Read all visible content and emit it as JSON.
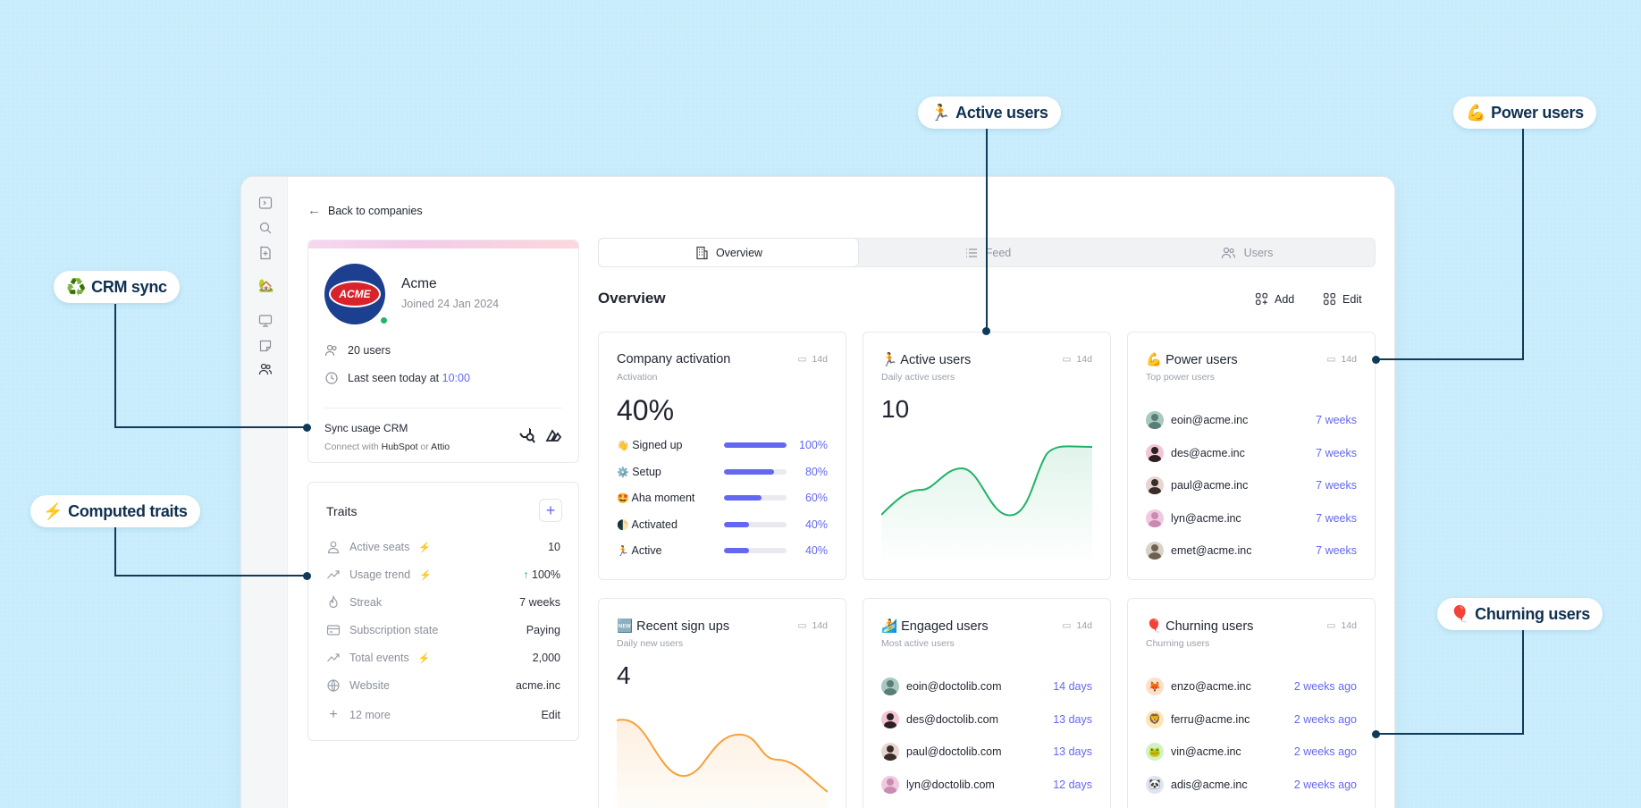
{
  "callouts": {
    "crm": {
      "icon": "♻️",
      "label": "CRM sync"
    },
    "traits": {
      "icon": "⚡",
      "label": "Computed traits"
    },
    "active": {
      "icon": "🏃",
      "label": "Active users"
    },
    "power": {
      "icon": "💪",
      "label": "Power users"
    },
    "churn": {
      "icon": "🎈",
      "label": "Churning users"
    }
  },
  "nav": {
    "back": "Back to companies"
  },
  "company": {
    "name": "Acme",
    "logo_text": "ACME",
    "joined": "Joined 24 Jan 2024",
    "users": "20 users",
    "last_seen_prefix": "Last seen today at",
    "last_seen_time": "10:00",
    "sync_title": "Sync usage CRM",
    "sync_connect": "Connect with",
    "sync_hubspot": "HubSpot",
    "sync_or": "or",
    "sync_attio": "Attio"
  },
  "traits": {
    "title": "Traits",
    "rows": [
      {
        "label": "Active seats",
        "computed": true,
        "value": "10",
        "icon": "user-icon"
      },
      {
        "label": "Usage trend",
        "computed": true,
        "value": "↑ 100%",
        "icon": "trend-icon"
      },
      {
        "label": "Streak",
        "computed": false,
        "value": "7 weeks",
        "icon": "flame-icon"
      },
      {
        "label": "Subscription state",
        "computed": false,
        "value": "Paying",
        "icon": "card-icon"
      },
      {
        "label": "Total events",
        "computed": true,
        "value": "2,000",
        "icon": "trend-icon"
      },
      {
        "label": "Website",
        "computed": false,
        "value": "acme.inc",
        "icon": "globe-icon"
      }
    ],
    "more": "12 more",
    "edit": "Edit"
  },
  "tabs": [
    {
      "label": "Overview",
      "icon": "building-icon"
    },
    {
      "label": "Feed",
      "icon": "list-icon"
    },
    {
      "label": "Users",
      "icon": "users-icon"
    }
  ],
  "overview": {
    "title": "Overview",
    "add": "Add",
    "edit": "Edit"
  },
  "widgets": {
    "activation": {
      "title": "Company activation",
      "subtitle": "Activation",
      "range": "14d",
      "value": "40%",
      "rows": [
        {
          "label": "Signed up",
          "emoji": "👋",
          "pct": "100%",
          "frac": 1.0
        },
        {
          "label": "Setup",
          "emoji": "⚙️",
          "pct": "80%",
          "frac": 0.8
        },
        {
          "label": "Aha moment",
          "emoji": "🤩",
          "pct": "60%",
          "frac": 0.6
        },
        {
          "label": "Activated",
          "emoji": "🌓",
          "pct": "40%",
          "frac": 0.4
        },
        {
          "label": "Active",
          "emoji": "🏃",
          "pct": "40%",
          "frac": 0.4
        }
      ]
    },
    "active": {
      "emoji": "🏃",
      "title": "Active users",
      "subtitle": "Daily active users",
      "range": "14d",
      "value": "10"
    },
    "power": {
      "emoji": "💪",
      "title": "Power users",
      "subtitle": "Top power users",
      "range": "14d",
      "rows": [
        {
          "email": "eoin@acme.inc",
          "value": "7 weeks"
        },
        {
          "email": "des@acme.inc",
          "value": "7 weeks"
        },
        {
          "email": "paul@acme.inc",
          "value": "7 weeks"
        },
        {
          "email": "lyn@acme.inc",
          "value": "7 weeks"
        },
        {
          "email": "emet@acme.inc",
          "value": "7 weeks"
        }
      ]
    },
    "signups": {
      "emoji": "🆕",
      "title": "Recent sign ups",
      "subtitle": "Daily new users",
      "range": "14d",
      "value": "4"
    },
    "engaged": {
      "emoji": "🏄",
      "title": "Engaged users",
      "subtitle": "Most active users",
      "range": "14d",
      "rows": [
        {
          "email": "eoin@doctolib.com",
          "value": "14 days"
        },
        {
          "email": "des@doctolib.com",
          "value": "13 days"
        },
        {
          "email": "paul@doctolib.com",
          "value": "13 days"
        },
        {
          "email": "lyn@doctolib.com",
          "value": "12 days"
        }
      ]
    },
    "churning": {
      "emoji": "🎈",
      "title": "Churning users",
      "subtitle": "Churning users",
      "range": "14d",
      "rows": [
        {
          "email": "enzo@acme.inc",
          "value": "2 weeks ago",
          "emoji": "🦊"
        },
        {
          "email": "ferru@acme.inc",
          "value": "2 weeks ago",
          "emoji": "🦁"
        },
        {
          "email": "vin@acme.inc",
          "value": "2 weeks ago",
          "emoji": "🐸"
        },
        {
          "email": "adis@acme.inc",
          "value": "2 weeks ago",
          "emoji": "🐼"
        }
      ]
    }
  },
  "colors": {
    "accent": "#6467f2",
    "green": "#23b26a",
    "orange": "#f5a13c",
    "callout_line": "#0f3a5a"
  }
}
